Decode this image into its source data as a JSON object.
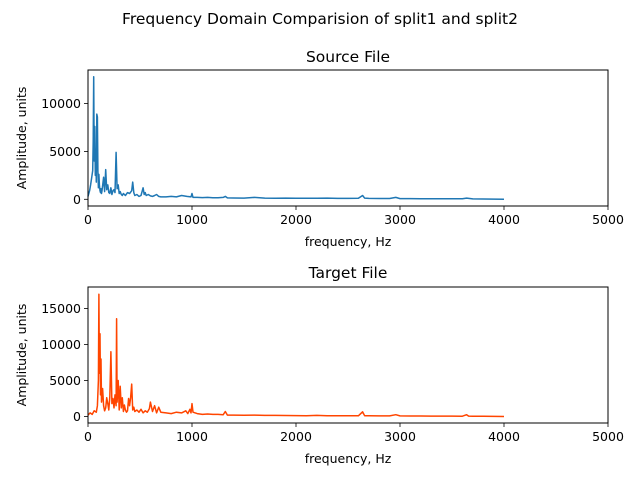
{
  "figure": {
    "suptitle": "Frequency Domain Comparision of split1 and split2"
  },
  "chart_data": [
    {
      "type": "line",
      "title": "Source File",
      "xlabel": "frequency, Hz",
      "ylabel": "Amplitude, units",
      "xlim": [
        0,
        5000
      ],
      "ylim": [
        -700,
        13500
      ],
      "xticks": [
        0,
        1000,
        2000,
        3000,
        4000,
        5000
      ],
      "yticks": [
        0,
        5000,
        10000
      ],
      "grid": false,
      "color": "#1f77b4",
      "series": [
        {
          "x": [
            0,
            15,
            25,
            35,
            45,
            50,
            55,
            60,
            65,
            70,
            75,
            80,
            85,
            90,
            95,
            100,
            105,
            110,
            115,
            120,
            125,
            130,
            135,
            140,
            150,
            160,
            170,
            180,
            190,
            200,
            210,
            220,
            230,
            240,
            250,
            260,
            270,
            280,
            290,
            300,
            310,
            320,
            330,
            340,
            350,
            360,
            380,
            400,
            420,
            430,
            440,
            450,
            470,
            490,
            510,
            530,
            540,
            550,
            560,
            580,
            600,
            620,
            640,
            660,
            680,
            700,
            750,
            800,
            850,
            900,
            950,
            990,
            1000,
            1010,
            1050,
            1100,
            1150,
            1200,
            1250,
            1300,
            1320,
            1340,
            1400,
            1500,
            1600,
            1700,
            1800,
            1900,
            2000,
            2100,
            2200,
            2300,
            2400,
            2500,
            2600,
            2640,
            2660,
            2700,
            2800,
            2900,
            2960,
            3000,
            3100,
            3200,
            3300,
            3400,
            3500,
            3600,
            3640,
            3700,
            3800,
            3900,
            4000
          ],
          "y": [
            300,
            900,
            1500,
            2200,
            3000,
            6000,
            12800,
            4000,
            7600,
            2500,
            5200,
            1800,
            8900,
            8600,
            3000,
            1200,
            2600,
            1500,
            900,
            700,
            1100,
            600,
            900,
            1400,
            2300,
            800,
            3100,
            1000,
            1500,
            700,
            600,
            1200,
            500,
            900,
            1000,
            700,
            4900,
            1100,
            1500,
            600,
            800,
            500,
            400,
            600,
            500,
            400,
            700,
            600,
            900,
            1800,
            700,
            400,
            500,
            300,
            400,
            1200,
            500,
            700,
            400,
            500,
            350,
            300,
            400,
            500,
            300,
            250,
            250,
            300,
            250,
            400,
            300,
            250,
            600,
            200,
            200,
            180,
            200,
            170,
            160,
            200,
            300,
            150,
            140,
            130,
            200,
            120,
            110,
            120,
            100,
            110,
            100,
            120,
            90,
            90,
            100,
            400,
            120,
            90,
            80,
            80,
            200,
            70,
            70,
            60,
            60,
            60,
            50,
            50,
            120,
            40,
            30,
            20,
            0
          ]
        }
      ]
    },
    {
      "type": "line",
      "title": "Target File",
      "xlabel": "frequency, Hz",
      "ylabel": "Amplitude, units",
      "xlim": [
        0,
        5000
      ],
      "ylim": [
        -900,
        18000
      ],
      "xticks": [
        0,
        1000,
        2000,
        3000,
        4000,
        5000
      ],
      "yticks": [
        0,
        5000,
        10000,
        15000
      ],
      "grid": false,
      "color": "#ff4500",
      "series": [
        {
          "x": [
            0,
            20,
            40,
            60,
            80,
            90,
            100,
            105,
            110,
            115,
            120,
            125,
            130,
            140,
            150,
            160,
            170,
            180,
            190,
            200,
            210,
            220,
            230,
            240,
            250,
            260,
            270,
            275,
            280,
            290,
            300,
            310,
            320,
            330,
            340,
            350,
            360,
            370,
            380,
            390,
            400,
            410,
            420,
            430,
            440,
            450,
            470,
            490,
            510,
            530,
            550,
            570,
            590,
            600,
            620,
            640,
            660,
            680,
            700,
            750,
            800,
            850,
            900,
            940,
            960,
            980,
            990,
            1000,
            1010,
            1050,
            1100,
            1150,
            1200,
            1250,
            1300,
            1320,
            1340,
            1400,
            1500,
            1600,
            1700,
            1800,
            1900,
            2000,
            2100,
            2200,
            2300,
            2400,
            2500,
            2600,
            2640,
            2660,
            2700,
            2800,
            2900,
            2960,
            3000,
            3100,
            3200,
            3300,
            3400,
            3500,
            3600,
            3640,
            3660,
            3700,
            3800,
            3900,
            4000
          ],
          "y": [
            200,
            500,
            300,
            800,
            600,
            1500,
            5000,
            17000,
            6000,
            11500,
            3000,
            8000,
            2000,
            3900,
            1500,
            800,
            1200,
            2600,
            1800,
            900,
            2700,
            9000,
            1800,
            2500,
            1200,
            3000,
            1500,
            13600,
            2000,
            5000,
            900,
            4200,
            1200,
            2600,
            700,
            1600,
            900,
            600,
            800,
            2500,
            1500,
            2600,
            4500,
            900,
            1300,
            700,
            900,
            600,
            1000,
            500,
            800,
            600,
            1100,
            2000,
            700,
            1500,
            500,
            1300,
            600,
            500,
            400,
            600,
            500,
            800,
            400,
            1000,
            500,
            1800,
            600,
            400,
            300,
            350,
            300,
            300,
            250,
            700,
            200,
            200,
            180,
            200,
            160,
            150,
            140,
            130,
            120,
            150,
            110,
            100,
            100,
            100,
            650,
            110,
            100,
            90,
            80,
            250,
            80,
            70,
            70,
            60,
            60,
            60,
            50,
            250,
            60,
            40,
            30,
            20,
            0
          ]
        }
      ]
    }
  ]
}
